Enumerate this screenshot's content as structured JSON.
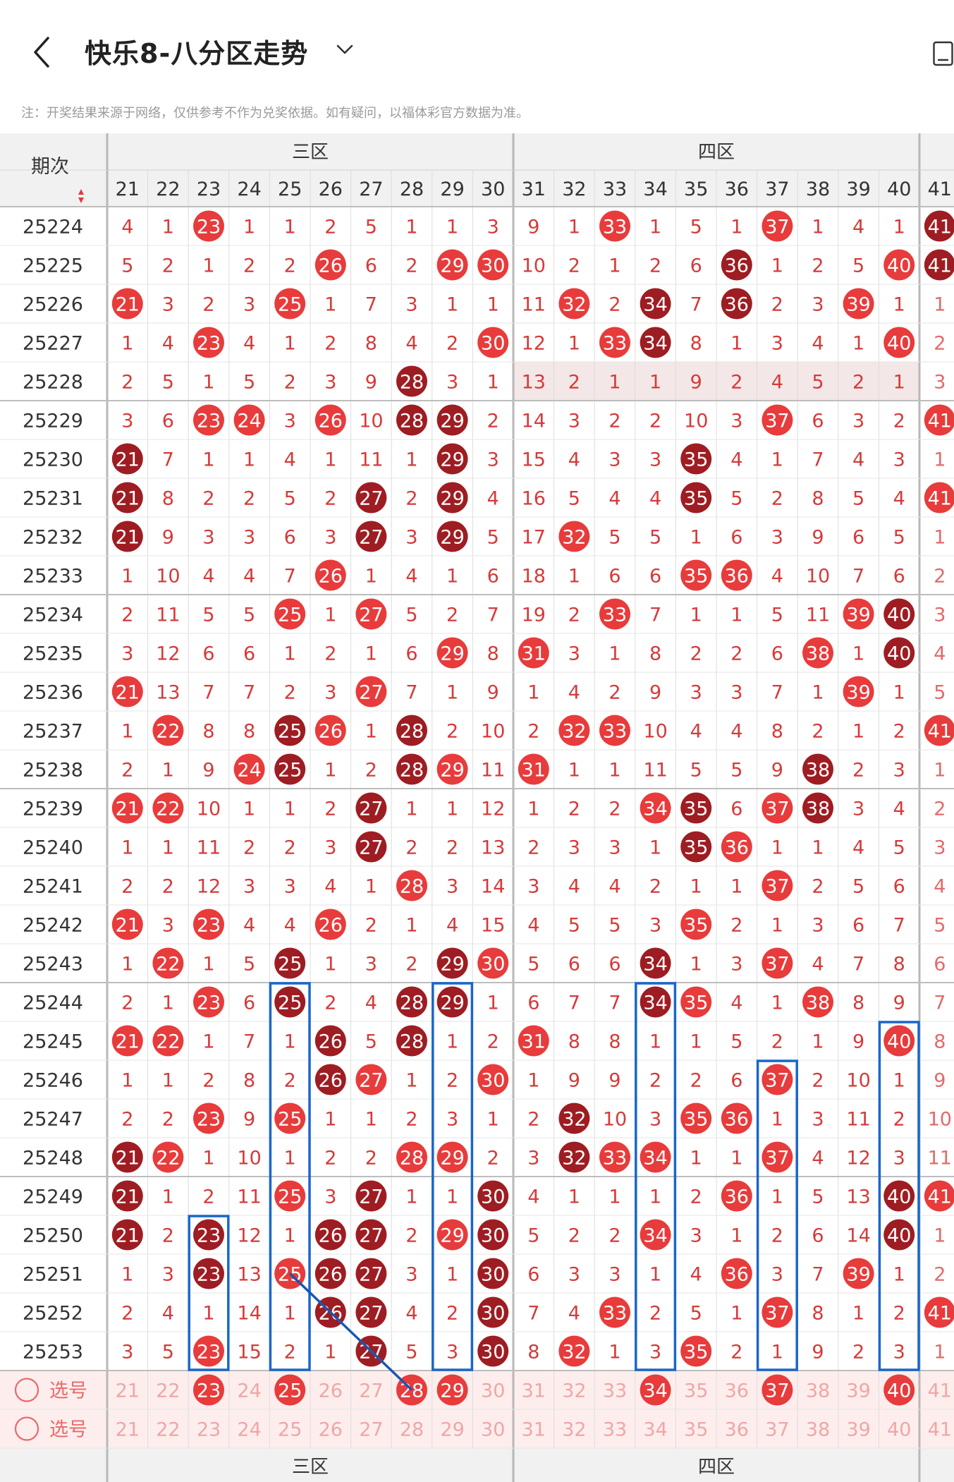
{
  "header": {
    "title": "快乐8-八分区走势",
    "note": "注：开奖结果来源于网络，仅供参考不作为兑奖依据。如有疑问，以福体彩官方数据为准。"
  },
  "table": {
    "period_label": "期次",
    "zones": [
      {
        "label": "三区"
      },
      {
        "label": "四区"
      }
    ],
    "columns": [
      "21",
      "22",
      "23",
      "24",
      "25",
      "26",
      "27",
      "28",
      "29",
      "30",
      "31",
      "32",
      "33",
      "34",
      "35",
      "36",
      "37",
      "38",
      "39",
      "40",
      "41"
    ],
    "rows": [
      {
        "period": "25224",
        "values": [
          "4",
          "1",
          "23",
          "1",
          "1",
          "2",
          "5",
          "1",
          "1",
          "3",
          "9",
          "1",
          "33",
          "1",
          "5",
          "1",
          "37",
          "1",
          "4",
          "1",
          "41"
        ]
      },
      {
        "period": "25225",
        "values": [
          "5",
          "2",
          "1",
          "2",
          "2",
          "26",
          "6",
          "2",
          "29",
          "30",
          "10",
          "2",
          "1",
          "2",
          "6",
          "36",
          "1",
          "2",
          "5",
          "40",
          "41"
        ]
      },
      {
        "period": "25226",
        "values": [
          "21",
          "3",
          "2",
          "3",
          "25",
          "1",
          "7",
          "3",
          "1",
          "1",
          "11",
          "32",
          "2",
          "34",
          "7",
          "36",
          "2",
          "3",
          "39",
          "1",
          "1"
        ]
      },
      {
        "period": "25227",
        "values": [
          "1",
          "4",
          "23",
          "4",
          "1",
          "2",
          "8",
          "4",
          "2",
          "30",
          "12",
          "1",
          "33",
          "34",
          "8",
          "1",
          "3",
          "4",
          "1",
          "40",
          "2"
        ]
      },
      {
        "period": "25228",
        "values": [
          "2",
          "5",
          "1",
          "5",
          "2",
          "3",
          "9",
          "28",
          "3",
          "1",
          "13",
          "2",
          "1",
          "1",
          "9",
          "2",
          "4",
          "5",
          "2",
          "1",
          "3"
        ]
      },
      {
        "period": "25229",
        "values": [
          "3",
          "6",
          "23",
          "24",
          "3",
          "26",
          "10",
          "28",
          "29",
          "2",
          "14",
          "3",
          "2",
          "2",
          "10",
          "3",
          "37",
          "6",
          "3",
          "2",
          "41"
        ]
      },
      {
        "period": "25230",
        "values": [
          "21",
          "7",
          "1",
          "1",
          "4",
          "1",
          "11",
          "1",
          "29",
          "3",
          "15",
          "4",
          "3",
          "3",
          "35",
          "4",
          "1",
          "7",
          "4",
          "3",
          "1"
        ]
      },
      {
        "period": "25231",
        "values": [
          "21",
          "8",
          "2",
          "2",
          "5",
          "2",
          "27",
          "2",
          "29",
          "4",
          "16",
          "5",
          "4",
          "4",
          "35",
          "5",
          "2",
          "8",
          "5",
          "4",
          "41"
        ]
      },
      {
        "period": "25232",
        "values": [
          "21",
          "9",
          "3",
          "3",
          "6",
          "3",
          "27",
          "3",
          "29",
          "5",
          "17",
          "32",
          "5",
          "5",
          "1",
          "6",
          "3",
          "9",
          "6",
          "5",
          "1"
        ]
      },
      {
        "period": "25233",
        "values": [
          "1",
          "10",
          "4",
          "4",
          "7",
          "26",
          "1",
          "4",
          "1",
          "6",
          "18",
          "1",
          "6",
          "6",
          "35",
          "36",
          "4",
          "10",
          "7",
          "6",
          "2"
        ]
      },
      {
        "period": "25234",
        "values": [
          "2",
          "11",
          "5",
          "5",
          "25",
          "1",
          "27",
          "5",
          "2",
          "7",
          "19",
          "2",
          "33",
          "7",
          "1",
          "1",
          "5",
          "11",
          "39",
          "40",
          "3"
        ]
      },
      {
        "period": "25235",
        "values": [
          "3",
          "12",
          "6",
          "6",
          "1",
          "2",
          "1",
          "6",
          "29",
          "8",
          "31",
          "3",
          "1",
          "8",
          "2",
          "2",
          "6",
          "38",
          "1",
          "40",
          "4"
        ]
      },
      {
        "period": "25236",
        "values": [
          "21",
          "13",
          "7",
          "7",
          "2",
          "3",
          "27",
          "7",
          "1",
          "9",
          "1",
          "4",
          "2",
          "9",
          "3",
          "3",
          "7",
          "1",
          "39",
          "1",
          "5"
        ]
      },
      {
        "period": "25237",
        "values": [
          "1",
          "22",
          "8",
          "8",
          "25",
          "26",
          "1",
          "28",
          "2",
          "10",
          "2",
          "32",
          "33",
          "10",
          "4",
          "4",
          "8",
          "2",
          "1",
          "2",
          "41"
        ]
      },
      {
        "period": "25238",
        "values": [
          "2",
          "1",
          "9",
          "24",
          "25",
          "1",
          "2",
          "28",
          "29",
          "11",
          "31",
          "1",
          "1",
          "11",
          "5",
          "5",
          "9",
          "38",
          "2",
          "3",
          "1"
        ]
      },
      {
        "period": "25239",
        "values": [
          "21",
          "22",
          "10",
          "1",
          "1",
          "2",
          "27",
          "1",
          "1",
          "12",
          "1",
          "2",
          "2",
          "34",
          "35",
          "6",
          "37",
          "38",
          "3",
          "4",
          "2"
        ]
      },
      {
        "period": "25240",
        "values": [
          "1",
          "1",
          "11",
          "2",
          "2",
          "3",
          "27",
          "2",
          "2",
          "13",
          "2",
          "3",
          "3",
          "1",
          "35",
          "36",
          "1",
          "1",
          "4",
          "5",
          "3"
        ]
      },
      {
        "period": "25241",
        "values": [
          "2",
          "2",
          "12",
          "3",
          "3",
          "4",
          "1",
          "28",
          "3",
          "14",
          "3",
          "4",
          "4",
          "2",
          "1",
          "1",
          "37",
          "2",
          "5",
          "6",
          "4"
        ]
      },
      {
        "period": "25242",
        "values": [
          "21",
          "3",
          "23",
          "4",
          "4",
          "26",
          "2",
          "1",
          "4",
          "15",
          "4",
          "5",
          "5",
          "3",
          "35",
          "2",
          "1",
          "3",
          "6",
          "7",
          "5"
        ]
      },
      {
        "period": "25243",
        "values": [
          "1",
          "22",
          "1",
          "5",
          "25",
          "1",
          "3",
          "2",
          "29",
          "30",
          "5",
          "6",
          "6",
          "34",
          "1",
          "3",
          "37",
          "4",
          "7",
          "8",
          "6"
        ]
      },
      {
        "period": "25244",
        "values": [
          "2",
          "1",
          "23",
          "6",
          "25",
          "2",
          "4",
          "28",
          "29",
          "1",
          "6",
          "7",
          "7",
          "34",
          "35",
          "4",
          "1",
          "38",
          "8",
          "9",
          "7"
        ]
      },
      {
        "period": "25245",
        "values": [
          "21",
          "22",
          "1",
          "7",
          "1",
          "26",
          "5",
          "28",
          "1",
          "2",
          "31",
          "8",
          "8",
          "1",
          "1",
          "5",
          "2",
          "1",
          "9",
          "40",
          "8"
        ]
      },
      {
        "period": "25246",
        "values": [
          "1",
          "1",
          "2",
          "8",
          "2",
          "26",
          "27",
          "1",
          "2",
          "30",
          "1",
          "9",
          "9",
          "2",
          "2",
          "6",
          "37",
          "2",
          "10",
          "1",
          "9"
        ]
      },
      {
        "period": "25247",
        "values": [
          "2",
          "2",
          "23",
          "9",
          "25",
          "1",
          "1",
          "2",
          "3",
          "1",
          "2",
          "32",
          "10",
          "3",
          "35",
          "36",
          "1",
          "3",
          "11",
          "2",
          "10"
        ]
      },
      {
        "period": "25248",
        "values": [
          "21",
          "22",
          "1",
          "10",
          "1",
          "2",
          "2",
          "28",
          "29",
          "2",
          "3",
          "32",
          "33",
          "34",
          "1",
          "1",
          "37",
          "4",
          "12",
          "3",
          "11"
        ]
      },
      {
        "period": "25249",
        "values": [
          "21",
          "1",
          "2",
          "11",
          "25",
          "3",
          "27",
          "1",
          "1",
          "30",
          "4",
          "1",
          "1",
          "1",
          "2",
          "36",
          "1",
          "5",
          "13",
          "40",
          "41"
        ]
      },
      {
        "period": "25250",
        "values": [
          "21",
          "2",
          "23",
          "12",
          "1",
          "26",
          "27",
          "2",
          "29",
          "30",
          "5",
          "2",
          "2",
          "34",
          "3",
          "1",
          "2",
          "6",
          "14",
          "40",
          "1"
        ]
      },
      {
        "period": "25251",
        "values": [
          "1",
          "3",
          "23",
          "13",
          "25",
          "26",
          "27",
          "3",
          "1",
          "30",
          "6",
          "3",
          "3",
          "1",
          "4",
          "36",
          "3",
          "7",
          "39",
          "1",
          "2"
        ]
      },
      {
        "period": "25252",
        "values": [
          "2",
          "4",
          "1",
          "14",
          "1",
          "26",
          "27",
          "4",
          "2",
          "30",
          "7",
          "4",
          "33",
          "2",
          "5",
          "1",
          "37",
          "8",
          "1",
          "2",
          "41"
        ]
      },
      {
        "period": "25253",
        "values": [
          "3",
          "5",
          "23",
          "15",
          "2",
          "1",
          "27",
          "5",
          "3",
          "30",
          "8",
          "32",
          "1",
          "3",
          "35",
          "2",
          "1",
          "9",
          "2",
          "3",
          "1"
        ]
      }
    ],
    "select_rows": [
      {
        "label": "选号",
        "selected": [
          "23",
          "25",
          "28",
          "29",
          "34",
          "37",
          "40"
        ]
      },
      {
        "label": "选号",
        "selected": []
      }
    ]
  }
}
